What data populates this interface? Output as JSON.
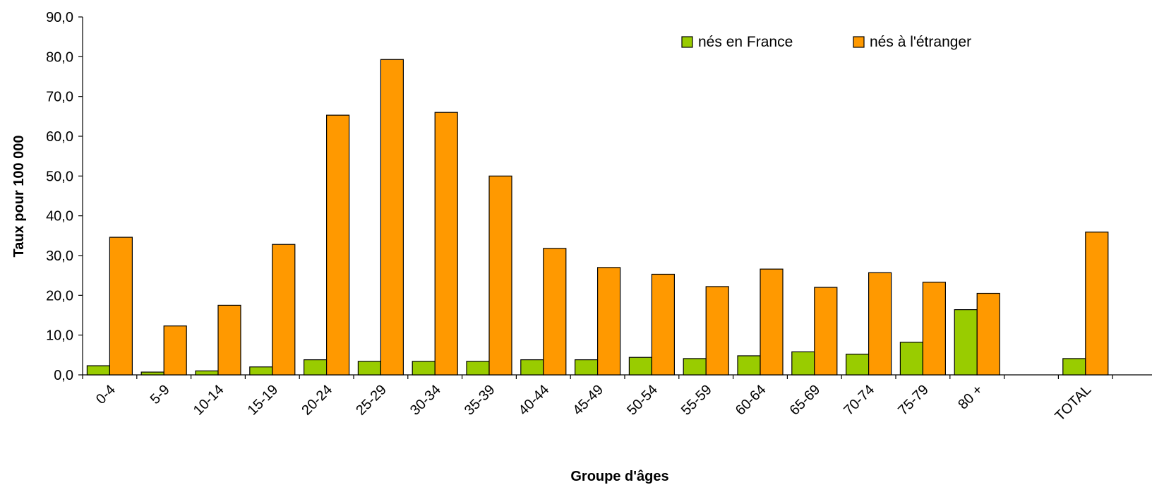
{
  "chart_data": {
    "type": "bar",
    "title": "",
    "xlabel": "Groupe d'âges",
    "ylabel": "Taux pour 100 000",
    "ylim": [
      0,
      90
    ],
    "yticks": [
      "0,0",
      "10,0",
      "20,0",
      "30,0",
      "40,0",
      "50,0",
      "60,0",
      "70,0",
      "80,0",
      "90,0"
    ],
    "grid": false,
    "legend_position": "top-right",
    "categories": [
      "0-4",
      "5-9",
      "10-14",
      "15-19",
      "20-24",
      "25-29",
      "30-34",
      "35-39",
      "40-44",
      "45-49",
      "50-54",
      "55-59",
      "60-64",
      "65-69",
      "70-74",
      "75-79",
      "80 +",
      "",
      "TOTAL"
    ],
    "series": [
      {
        "name": "nés en France",
        "color": "#99CC00",
        "values": [
          2.3,
          0.7,
          1.0,
          2.0,
          3.8,
          3.4,
          3.4,
          3.4,
          3.8,
          3.8,
          4.4,
          4.1,
          4.8,
          5.8,
          5.2,
          8.2,
          16.4,
          null,
          4.1
        ]
      },
      {
        "name": "nés à l'étranger",
        "color": "#FF9900",
        "values": [
          34.6,
          12.3,
          17.5,
          32.8,
          65.3,
          79.3,
          66.0,
          50.0,
          31.8,
          27.0,
          25.3,
          22.2,
          26.6,
          22.0,
          25.7,
          23.3,
          20.5,
          null,
          35.9
        ]
      }
    ]
  }
}
